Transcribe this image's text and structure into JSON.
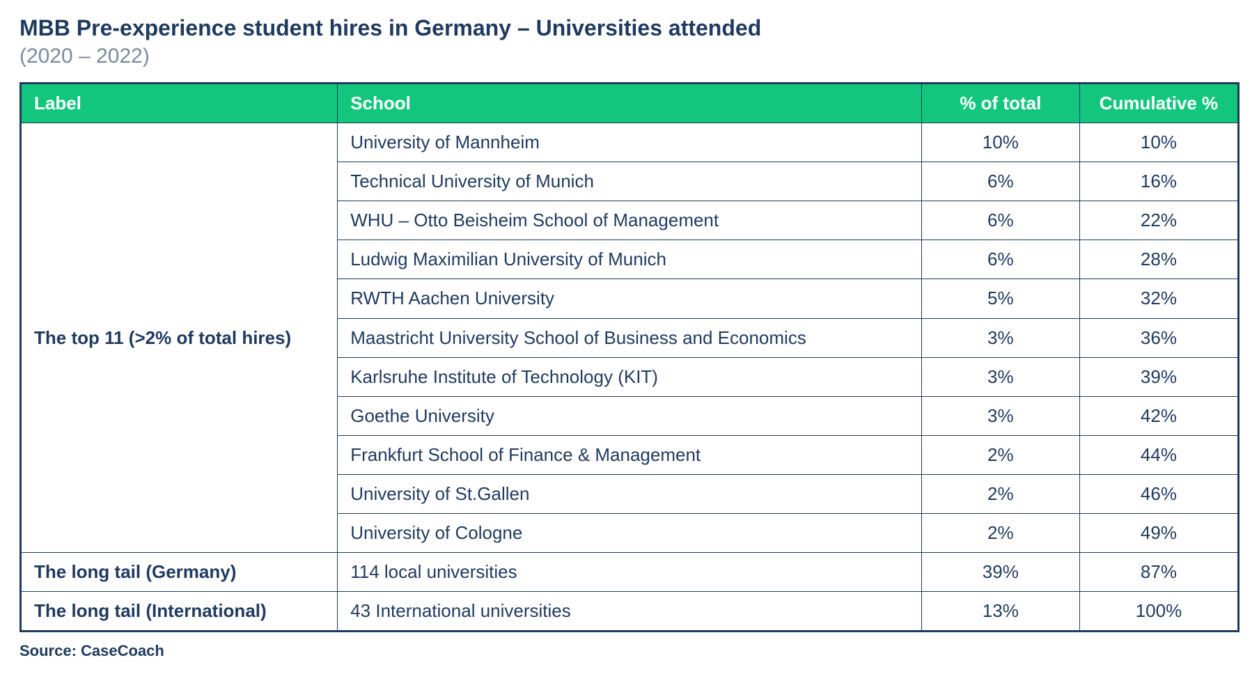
{
  "title": "MBB Pre-experience student hires in Germany – Universities attended",
  "subtitle": "(2020 – 2022)",
  "source": "Source: CaseCoach",
  "colors": {
    "title_color": "#1f3a5f",
    "subtitle_color": "#7a8aa0",
    "header_bg": "#12c77d",
    "header_text": "#ffffff",
    "table_border": "#1f3a5f",
    "cell_text": "#1f3a5f",
    "source_color": "#1f3a5f",
    "page_bg": "#ffffff"
  },
  "layout": {
    "col_widths_pct": [
      26,
      48,
      13,
      13
    ],
    "header_align": [
      "left",
      "left",
      "center",
      "center"
    ]
  },
  "columns": [
    "Label",
    "School",
    "% of total",
    "Cumulative %"
  ],
  "groups": [
    {
      "label": "The top 11 (>2% of total hires)",
      "rows": [
        {
          "school": "University of Mannheim",
          "pct": "10%",
          "cum": "10%"
        },
        {
          "school": "Technical University of Munich",
          "pct": "6%",
          "cum": "16%"
        },
        {
          "school": "WHU – Otto Beisheim School of Management",
          "pct": "6%",
          "cum": "22%"
        },
        {
          "school": "Ludwig Maximilian University of Munich",
          "pct": "6%",
          "cum": "28%"
        },
        {
          "school": "RWTH Aachen University",
          "pct": "5%",
          "cum": "32%"
        },
        {
          "school": "Maastricht University School of Business and Economics",
          "pct": "3%",
          "cum": "36%"
        },
        {
          "school": "Karlsruhe Institute of Technology (KIT)",
          "pct": "3%",
          "cum": "39%"
        },
        {
          "school": "Goethe University",
          "pct": "3%",
          "cum": "42%"
        },
        {
          "school": "Frankfurt School of Finance & Management",
          "pct": "2%",
          "cum": "44%"
        },
        {
          "school": "University of St.Gallen",
          "pct": "2%",
          "cum": "46%"
        },
        {
          "school": "University of Cologne",
          "pct": "2%",
          "cum": "49%"
        }
      ]
    },
    {
      "label": "The long tail (Germany)",
      "rows": [
        {
          "school": "114 local universities",
          "pct": "39%",
          "cum": "87%"
        }
      ]
    },
    {
      "label": "The long tail (International)",
      "rows": [
        {
          "school": "43 International universities",
          "pct": "13%",
          "cum": "100%"
        }
      ]
    }
  ]
}
